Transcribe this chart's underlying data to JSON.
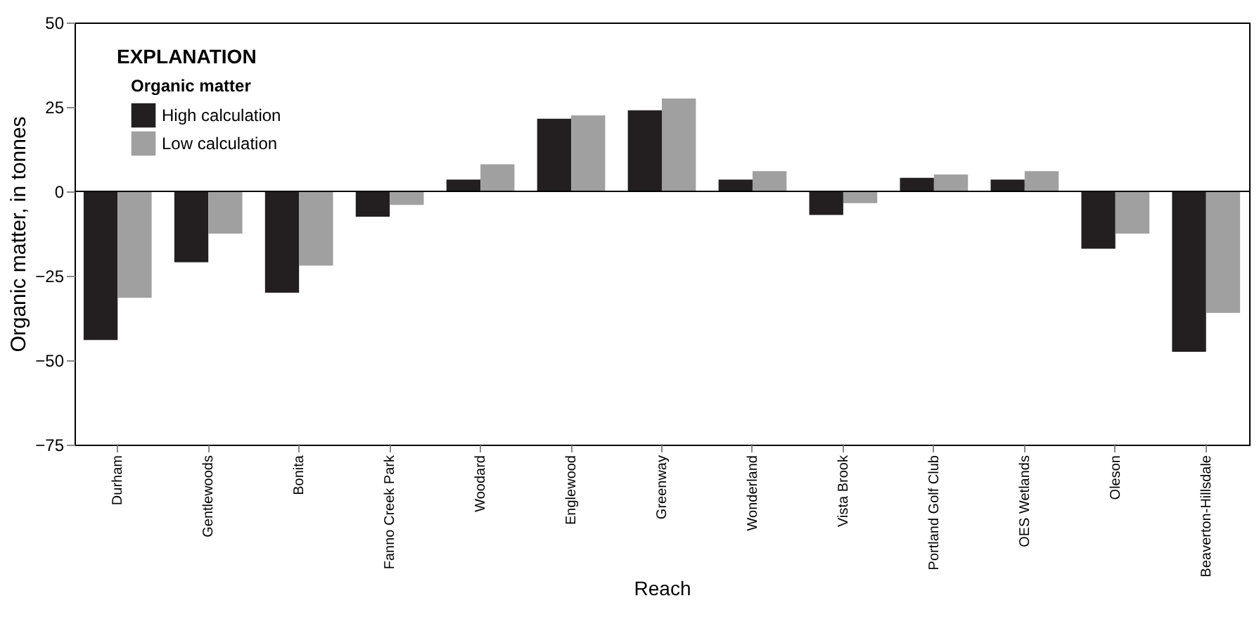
{
  "chart_data": {
    "type": "bar",
    "xlabel": "Reach",
    "ylabel": "Organic matter, in tonnes",
    "legend_title": "Organic matter",
    "legend": "top left",
    "annotations": [
      "EXPLANATION"
    ],
    "categories": [
      "Durham",
      "Gentlewoods",
      "Bonita",
      "Fanno Creek Park",
      "Woodard",
      "Englewood",
      "Greenway",
      "Wonderland",
      "Vista Brook",
      "Portland Golf Club",
      "OES Wetlands",
      "Oleson",
      "Beaverton-Hillsdale"
    ],
    "series": [
      {
        "name": "High calculation",
        "color": "#231f20",
        "values": [
          -44,
          -21,
          -30,
          -7.5,
          3.5,
          21.5,
          24,
          3.5,
          -7,
          4,
          3.5,
          -17,
          -47.5
        ]
      },
      {
        "name": "Low calculation",
        "color": "#a0a0a0",
        "values": [
          -31.5,
          -12.5,
          -22,
          -4,
          8,
          22.5,
          27.5,
          6,
          -3.5,
          5,
          6,
          -12.5,
          -36
        ]
      }
    ],
    "ylim": [
      -75,
      50
    ],
    "yticks": [
      -75,
      -50,
      -25,
      0,
      25,
      50
    ],
    "grid": false,
    "ref_lines": [
      {
        "axis": "y",
        "value": 0,
        "color": "#000000"
      }
    ]
  }
}
